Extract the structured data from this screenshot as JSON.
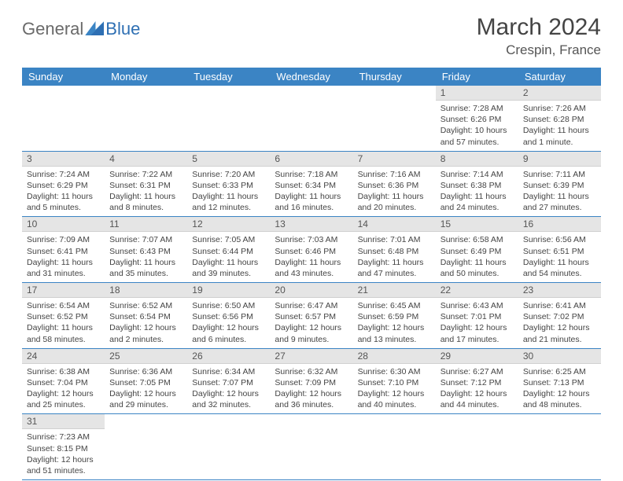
{
  "logo": {
    "part1": "General",
    "part2": "Blue"
  },
  "title": "March 2024",
  "location": "Crespin, France",
  "day_headers": [
    "Sunday",
    "Monday",
    "Tuesday",
    "Wednesday",
    "Thursday",
    "Friday",
    "Saturday"
  ],
  "colors": {
    "header_bg": "#3b84c4",
    "daynum_bg": "#e5e5e5",
    "row_border": "#3b84c4"
  },
  "weeks": [
    [
      null,
      null,
      null,
      null,
      null,
      {
        "n": "1",
        "sr": "Sunrise: 7:28 AM",
        "ss": "Sunset: 6:26 PM",
        "dl": "Daylight: 10 hours and 57 minutes."
      },
      {
        "n": "2",
        "sr": "Sunrise: 7:26 AM",
        "ss": "Sunset: 6:28 PM",
        "dl": "Daylight: 11 hours and 1 minute."
      }
    ],
    [
      {
        "n": "3",
        "sr": "Sunrise: 7:24 AM",
        "ss": "Sunset: 6:29 PM",
        "dl": "Daylight: 11 hours and 5 minutes."
      },
      {
        "n": "4",
        "sr": "Sunrise: 7:22 AM",
        "ss": "Sunset: 6:31 PM",
        "dl": "Daylight: 11 hours and 8 minutes."
      },
      {
        "n": "5",
        "sr": "Sunrise: 7:20 AM",
        "ss": "Sunset: 6:33 PM",
        "dl": "Daylight: 11 hours and 12 minutes."
      },
      {
        "n": "6",
        "sr": "Sunrise: 7:18 AM",
        "ss": "Sunset: 6:34 PM",
        "dl": "Daylight: 11 hours and 16 minutes."
      },
      {
        "n": "7",
        "sr": "Sunrise: 7:16 AM",
        "ss": "Sunset: 6:36 PM",
        "dl": "Daylight: 11 hours and 20 minutes."
      },
      {
        "n": "8",
        "sr": "Sunrise: 7:14 AM",
        "ss": "Sunset: 6:38 PM",
        "dl": "Daylight: 11 hours and 24 minutes."
      },
      {
        "n": "9",
        "sr": "Sunrise: 7:11 AM",
        "ss": "Sunset: 6:39 PM",
        "dl": "Daylight: 11 hours and 27 minutes."
      }
    ],
    [
      {
        "n": "10",
        "sr": "Sunrise: 7:09 AM",
        "ss": "Sunset: 6:41 PM",
        "dl": "Daylight: 11 hours and 31 minutes."
      },
      {
        "n": "11",
        "sr": "Sunrise: 7:07 AM",
        "ss": "Sunset: 6:43 PM",
        "dl": "Daylight: 11 hours and 35 minutes."
      },
      {
        "n": "12",
        "sr": "Sunrise: 7:05 AM",
        "ss": "Sunset: 6:44 PM",
        "dl": "Daylight: 11 hours and 39 minutes."
      },
      {
        "n": "13",
        "sr": "Sunrise: 7:03 AM",
        "ss": "Sunset: 6:46 PM",
        "dl": "Daylight: 11 hours and 43 minutes."
      },
      {
        "n": "14",
        "sr": "Sunrise: 7:01 AM",
        "ss": "Sunset: 6:48 PM",
        "dl": "Daylight: 11 hours and 47 minutes."
      },
      {
        "n": "15",
        "sr": "Sunrise: 6:58 AM",
        "ss": "Sunset: 6:49 PM",
        "dl": "Daylight: 11 hours and 50 minutes."
      },
      {
        "n": "16",
        "sr": "Sunrise: 6:56 AM",
        "ss": "Sunset: 6:51 PM",
        "dl": "Daylight: 11 hours and 54 minutes."
      }
    ],
    [
      {
        "n": "17",
        "sr": "Sunrise: 6:54 AM",
        "ss": "Sunset: 6:52 PM",
        "dl": "Daylight: 11 hours and 58 minutes."
      },
      {
        "n": "18",
        "sr": "Sunrise: 6:52 AM",
        "ss": "Sunset: 6:54 PM",
        "dl": "Daylight: 12 hours and 2 minutes."
      },
      {
        "n": "19",
        "sr": "Sunrise: 6:50 AM",
        "ss": "Sunset: 6:56 PM",
        "dl": "Daylight: 12 hours and 6 minutes."
      },
      {
        "n": "20",
        "sr": "Sunrise: 6:47 AM",
        "ss": "Sunset: 6:57 PM",
        "dl": "Daylight: 12 hours and 9 minutes."
      },
      {
        "n": "21",
        "sr": "Sunrise: 6:45 AM",
        "ss": "Sunset: 6:59 PM",
        "dl": "Daylight: 12 hours and 13 minutes."
      },
      {
        "n": "22",
        "sr": "Sunrise: 6:43 AM",
        "ss": "Sunset: 7:01 PM",
        "dl": "Daylight: 12 hours and 17 minutes."
      },
      {
        "n": "23",
        "sr": "Sunrise: 6:41 AM",
        "ss": "Sunset: 7:02 PM",
        "dl": "Daylight: 12 hours and 21 minutes."
      }
    ],
    [
      {
        "n": "24",
        "sr": "Sunrise: 6:38 AM",
        "ss": "Sunset: 7:04 PM",
        "dl": "Daylight: 12 hours and 25 minutes."
      },
      {
        "n": "25",
        "sr": "Sunrise: 6:36 AM",
        "ss": "Sunset: 7:05 PM",
        "dl": "Daylight: 12 hours and 29 minutes."
      },
      {
        "n": "26",
        "sr": "Sunrise: 6:34 AM",
        "ss": "Sunset: 7:07 PM",
        "dl": "Daylight: 12 hours and 32 minutes."
      },
      {
        "n": "27",
        "sr": "Sunrise: 6:32 AM",
        "ss": "Sunset: 7:09 PM",
        "dl": "Daylight: 12 hours and 36 minutes."
      },
      {
        "n": "28",
        "sr": "Sunrise: 6:30 AM",
        "ss": "Sunset: 7:10 PM",
        "dl": "Daylight: 12 hours and 40 minutes."
      },
      {
        "n": "29",
        "sr": "Sunrise: 6:27 AM",
        "ss": "Sunset: 7:12 PM",
        "dl": "Daylight: 12 hours and 44 minutes."
      },
      {
        "n": "30",
        "sr": "Sunrise: 6:25 AM",
        "ss": "Sunset: 7:13 PM",
        "dl": "Daylight: 12 hours and 48 minutes."
      }
    ],
    [
      {
        "n": "31",
        "sr": "Sunrise: 7:23 AM",
        "ss": "Sunset: 8:15 PM",
        "dl": "Daylight: 12 hours and 51 minutes."
      },
      null,
      null,
      null,
      null,
      null,
      null
    ]
  ]
}
